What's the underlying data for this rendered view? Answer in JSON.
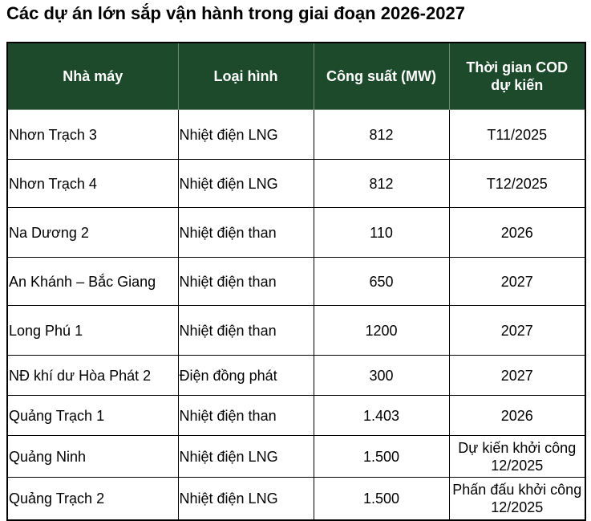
{
  "header": {
    "title": "Các dự án lớn sắp vận hành trong giai đoạn 2026-2027"
  },
  "table": {
    "columns": [
      "Nhà máy",
      "Loại hình",
      "Công suất (MW)",
      "Thời gian COD dự kiến"
    ],
    "rows": [
      [
        "Nhơn Trạch 3",
        "Nhiệt điện LNG",
        "812",
        "T11/2025"
      ],
      [
        "Nhơn Trạch 4",
        "Nhiệt điện LNG",
        "812",
        "T12/2025"
      ],
      [
        "Na Dương 2",
        "Nhiệt điện than",
        "110",
        "2026"
      ],
      [
        "An Khánh – Bắc Giang",
        "Nhiệt điện than",
        "650",
        "2027"
      ],
      [
        "Long Phú 1",
        "Nhiệt điện than",
        "1200",
        "2027"
      ],
      [
        "NĐ khí dư Hòa Phát 2",
        "Điện đồng phát",
        "300",
        "2027"
      ],
      [
        "Quảng Trạch 1",
        "Nhiệt điện than",
        "1.403",
        "2026"
      ],
      [
        "Quảng Ninh",
        "Nhiệt điện LNG",
        "1.500",
        "Dự kiến khởi công 12/2025"
      ],
      [
        "Quảng Trạch 2",
        "Nhiệt điện LNG",
        "1.500",
        "Phấn đấu khởi công 12/2025"
      ]
    ]
  }
}
